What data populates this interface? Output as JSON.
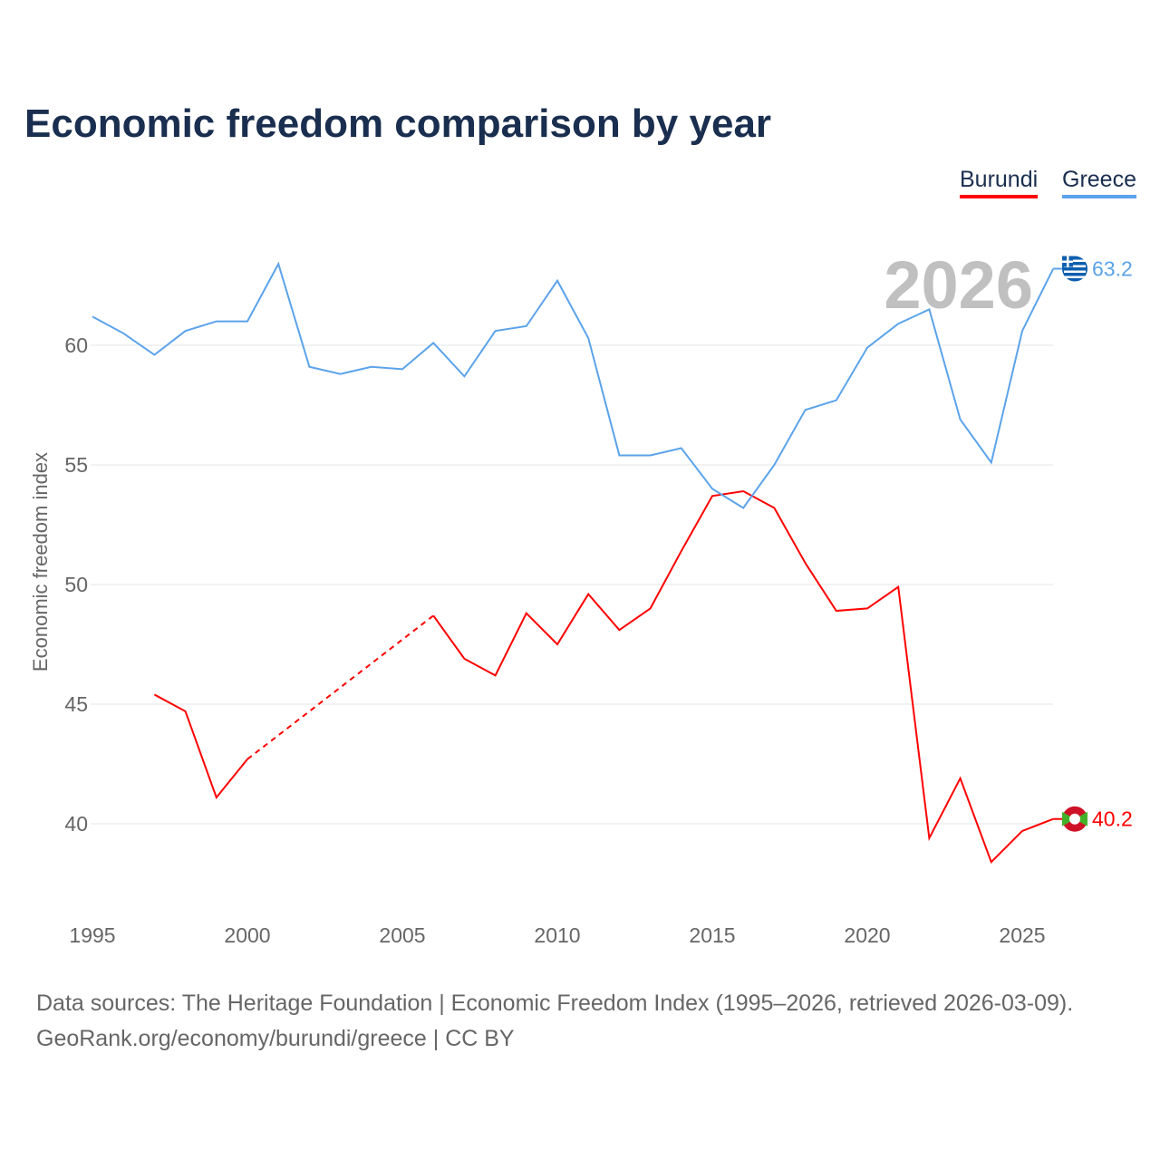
{
  "title": "Economic freedom comparison by year",
  "legend": [
    {
      "label": "Burundi",
      "color": "#ff0000"
    },
    {
      "label": "Greece",
      "color": "#5ba3ea"
    }
  ],
  "source_line1": "Data sources: The Heritage Foundation | Economic Freedom Index (1995–2026, retrieved 2026-03-09).",
  "source_line2": "GeoRank.org/economy/burundi/greece | CC BY",
  "chart_data": {
    "type": "line",
    "title": "Economic freedom comparison by year",
    "ylabel": "Economic freedom index",
    "xlabel": "",
    "year_label": "2026",
    "x": [
      1995,
      1996,
      1997,
      1998,
      1999,
      2000,
      2001,
      2002,
      2003,
      2004,
      2005,
      2006,
      2007,
      2008,
      2009,
      2010,
      2011,
      2012,
      2013,
      2014,
      2015,
      2016,
      2017,
      2018,
      2019,
      2020,
      2021,
      2022,
      2023,
      2024,
      2025,
      2026
    ],
    "xlim": [
      1995,
      2026
    ],
    "ylim": [
      36.5,
      65
    ],
    "xticks": [
      "1995",
      "2000",
      "2005",
      "2010",
      "2015",
      "2020",
      "2025"
    ],
    "yticks": [
      "40",
      "45",
      "50",
      "55",
      "60"
    ],
    "series": [
      {
        "name": "Burundi",
        "color": "#ff0000",
        "end_label": "40.2",
        "flag": "burundi-flag",
        "values": [
          null,
          null,
          45.4,
          44.7,
          41.1,
          42.7,
          null,
          null,
          null,
          null,
          null,
          48.7,
          46.9,
          46.2,
          48.8,
          47.5,
          49.6,
          48.1,
          49.0,
          51.4,
          53.7,
          53.9,
          53.2,
          50.9,
          48.9,
          49.0,
          49.9,
          39.4,
          41.9,
          38.4,
          39.7,
          40.2
        ]
      },
      {
        "name": "Greece",
        "color": "#5ba3ea",
        "end_label": "63.2",
        "flag": "greece-flag",
        "values": [
          61.2,
          60.5,
          59.6,
          60.6,
          61.0,
          61.0,
          63.4,
          59.1,
          58.8,
          59.1,
          59.0,
          60.1,
          58.7,
          60.6,
          60.8,
          62.7,
          60.3,
          55.4,
          55.4,
          55.7,
          54.0,
          53.2,
          55.0,
          57.3,
          57.7,
          59.9,
          60.9,
          61.5,
          56.9,
          55.1,
          60.6,
          63.2
        ]
      }
    ]
  }
}
